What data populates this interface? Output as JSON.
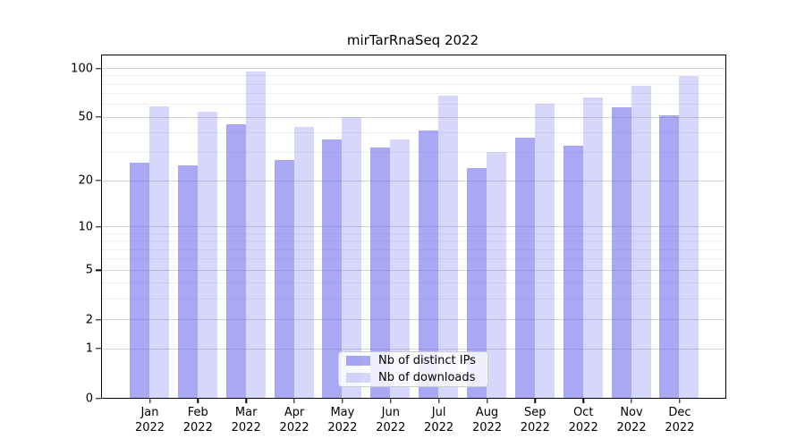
{
  "title": "mirTarRnaSeq 2022",
  "colors": {
    "bar_distinct_ips": "#6666EE91",
    "bar_downloads": "#6666EE42",
    "gridline_major": "#d4d4d4",
    "gridline_minor": "#efefef",
    "axis": "#000000",
    "legend_border": "#cccccc"
  },
  "chart_data": {
    "type": "bar",
    "title": "mirTarRnaSeq 2022",
    "categories": [
      "Jan",
      "Feb",
      "Mar",
      "Apr",
      "May",
      "Jun",
      "Jul",
      "Aug",
      "Sep",
      "Oct",
      "Nov",
      "Dec"
    ],
    "year_label": "2022",
    "series": [
      {
        "name": "Nb of distinct IPs",
        "color": "#6666EE91",
        "values": [
          26,
          25,
          45,
          27,
          36,
          32,
          41,
          24,
          37,
          33,
          57,
          51
        ]
      },
      {
        "name": "Nb of downloads",
        "color": "#6666EE42",
        "values": [
          58,
          54,
          95,
          43,
          50,
          36,
          68,
          30,
          60,
          66,
          78,
          89
        ]
      }
    ],
    "xlabel": "",
    "ylabel": "",
    "yscale": "log1p",
    "yticks": [
      0,
      1,
      2,
      5,
      10,
      20,
      50,
      100
    ],
    "minor_gridline_values": [
      3,
      4,
      6,
      7,
      8,
      9,
      30,
      40,
      60,
      70,
      80,
      90
    ],
    "ylim": [
      0,
      112
    ],
    "grid": "on",
    "legend_position": "lower center"
  }
}
